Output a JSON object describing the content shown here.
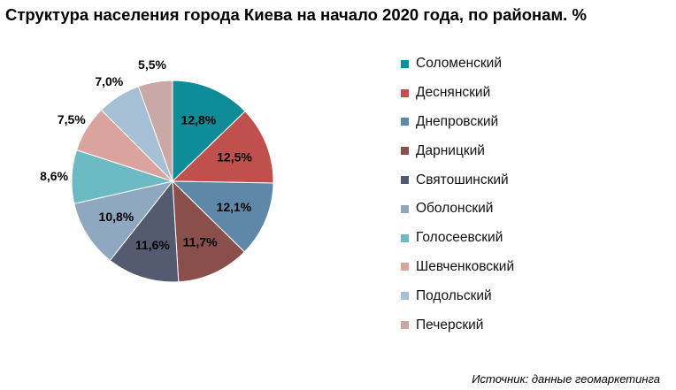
{
  "title": "Структура населения города Киева на начало 2020 года, по районам. %",
  "source": "Источник: данные геомаркетинга",
  "chart_data": {
    "type": "pie",
    "categories": [
      "Соломенский",
      "Деснянский",
      "Днепровский",
      "Дарницкий",
      "Святошинский",
      "Оболонский",
      "Голосеевский",
      "Шевченковский",
      "Подольский",
      "Печерский"
    ],
    "values": [
      12.8,
      12.5,
      12.1,
      11.7,
      11.6,
      10.8,
      8.6,
      7.5,
      7.0,
      5.5
    ],
    "labels": [
      "12,8%",
      "12,5%",
      "12,1%",
      "11,7%",
      "11,6%",
      "10,8%",
      "8,6%",
      "7,5%",
      "7,0%",
      "5,5%"
    ],
    "colors": [
      "#0e8c97",
      "#c0504d",
      "#5e87a8",
      "#8a4f4a",
      "#545b70",
      "#8fa8bf",
      "#6bbac4",
      "#dba39d",
      "#a5bfd4",
      "#c9a8a6"
    ],
    "legend_position": "right",
    "start_angle": "top",
    "direction": "clockwise"
  }
}
